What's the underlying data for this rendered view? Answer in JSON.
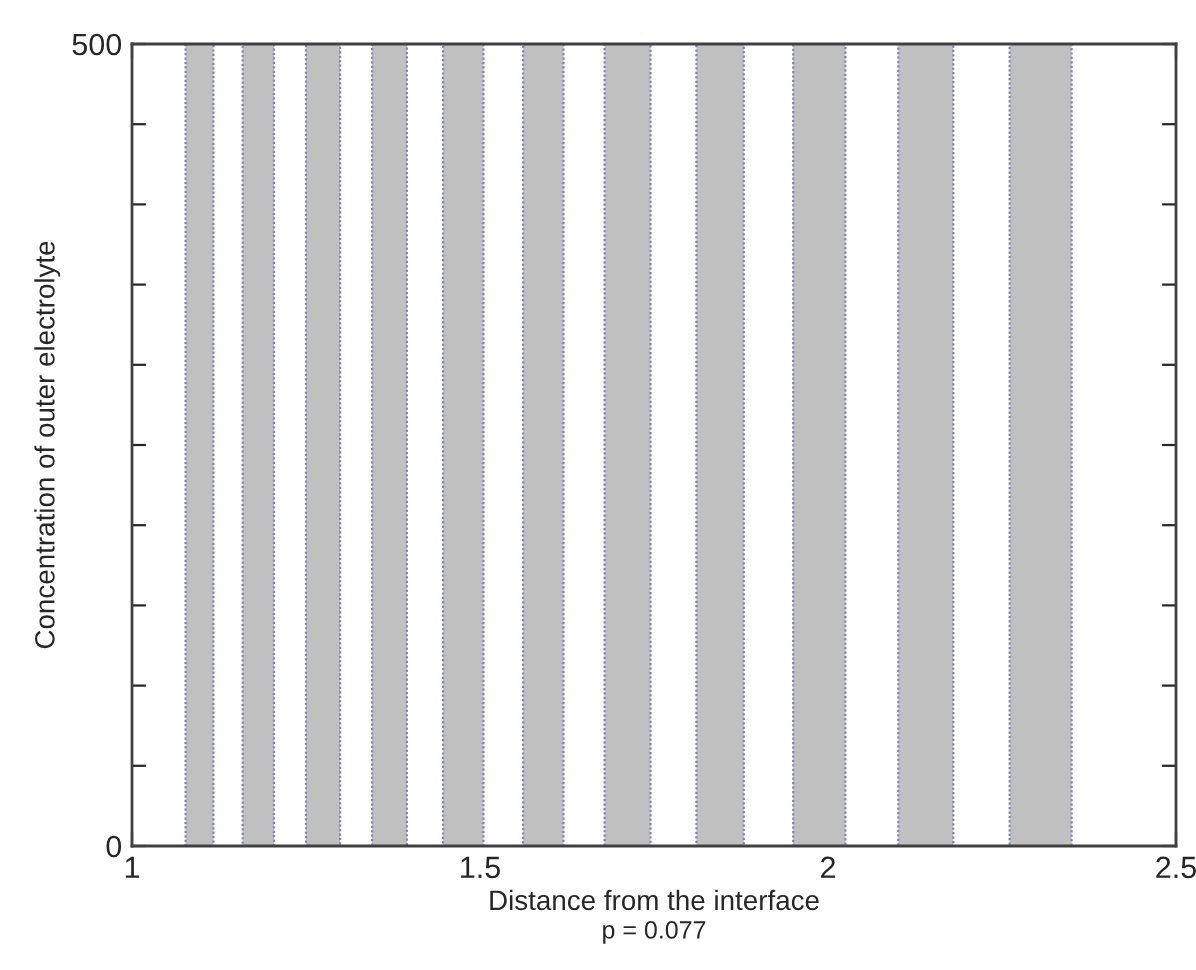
{
  "chart_data": {
    "type": "line",
    "xlabel": "Distance from the interface",
    "ylabel": "Concentration of outer electrolyte",
    "annotations": [
      "p = 0.077"
    ],
    "xlim": [
      1,
      2.5
    ],
    "xticks": [
      1,
      1.5,
      2,
      2.5
    ],
    "ylim": [
      0,
      500
    ],
    "yticks": [
      0,
      {
        "value": 50,
        "label": null
      },
      {
        "value": 100,
        "label": null
      },
      {
        "value": 150,
        "label": null
      },
      {
        "value": 200,
        "label": null
      },
      {
        "value": 250,
        "label": null
      },
      {
        "value": 300,
        "label": null
      },
      {
        "value": 350,
        "label": null
      },
      {
        "value": 400,
        "label": null
      },
      {
        "value": 450,
        "label": null
      },
      500
    ],
    "bands": [
      {
        "axis": "x",
        "from": 1.077,
        "to": 1.117,
        "color": "#c0c0c0"
      },
      {
        "axis": "x",
        "from": 1.159,
        "to": 1.204,
        "color": "#c0c0c0"
      },
      {
        "axis": "x",
        "from": 1.25,
        "to": 1.299,
        "color": "#c0c0c0"
      },
      {
        "axis": "x",
        "from": 1.345,
        "to": 1.395,
        "color": "#c0c0c0"
      },
      {
        "axis": "x",
        "from": 1.447,
        "to": 1.505,
        "color": "#c0c0c0"
      },
      {
        "axis": "x",
        "from": 1.562,
        "to": 1.62,
        "color": "#c0c0c0"
      },
      {
        "axis": "x",
        "from": 1.679,
        "to": 1.745,
        "color": "#c0c0c0"
      },
      {
        "axis": "x",
        "from": 1.811,
        "to": 1.879,
        "color": "#c0c0c0"
      },
      {
        "axis": "x",
        "from": 1.95,
        "to": 2.025,
        "color": "#c0c0c0"
      },
      {
        "axis": "x",
        "from": 2.101,
        "to": 2.18,
        "color": "#c0c0c0"
      },
      {
        "axis": "x",
        "from": 2.261,
        "to": 2.35,
        "color": "#c0c0c0"
      }
    ],
    "legend": false
  }
}
